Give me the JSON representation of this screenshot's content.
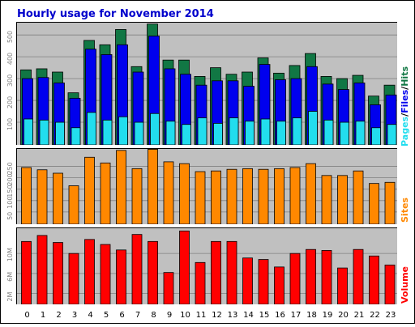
{
  "chart_data": [
    {
      "type": "bar",
      "title": "Hourly usage for November 2014",
      "categories": [
        "0",
        "1",
        "2",
        "3",
        "4",
        "5",
        "6",
        "7",
        "8",
        "9",
        "10",
        "11",
        "12",
        "13",
        "14",
        "15",
        "16",
        "17",
        "18",
        "19",
        "20",
        "21",
        "22",
        "23"
      ],
      "ylabel_parts": [
        "Pages",
        "/",
        "Files",
        "/",
        "Hits"
      ],
      "ylim": [
        0,
        560
      ],
      "yticks": [
        "100",
        "200",
        "300",
        "400",
        "500"
      ],
      "series": [
        {
          "name": "Hits",
          "color": "#117744",
          "values": [
            340,
            345,
            330,
            235,
            475,
            455,
            525,
            355,
            550,
            385,
            385,
            310,
            350,
            320,
            330,
            395,
            325,
            360,
            415,
            310,
            300,
            315,
            220,
            270
          ]
        },
        {
          "name": "Files",
          "color": "#0000ee",
          "values": [
            300,
            305,
            280,
            210,
            435,
            410,
            455,
            330,
            495,
            345,
            320,
            270,
            290,
            290,
            265,
            365,
            295,
            300,
            355,
            275,
            250,
            280,
            180,
            225
          ]
        },
        {
          "name": "Pages",
          "color": "#22ddee",
          "values": [
            115,
            110,
            100,
            75,
            145,
            110,
            125,
            100,
            140,
            105,
            90,
            120,
            95,
            120,
            105,
            115,
            105,
            120,
            150,
            110,
            100,
            105,
            75,
            90
          ]
        }
      ],
      "grid": true
    },
    {
      "type": "bar",
      "categories": [
        "0",
        "1",
        "2",
        "3",
        "4",
        "5",
        "6",
        "7",
        "8",
        "9",
        "10",
        "11",
        "12",
        "13",
        "14",
        "15",
        "16",
        "17",
        "18",
        "19",
        "20",
        "21",
        "22",
        "23"
      ],
      "ylabel": "Sites",
      "ylim": [
        0,
        330
      ],
      "yticks": [
        "50",
        "100",
        "150",
        "200",
        "250"
      ],
      "series": [
        {
          "name": "Sites",
          "color": "#ff8800",
          "values": [
            245,
            235,
            220,
            165,
            290,
            265,
            320,
            240,
            325,
            270,
            262,
            227,
            230,
            237,
            240,
            237,
            240,
            245,
            262,
            210,
            210,
            230,
            175,
            180
          ]
        }
      ],
      "grid": true
    },
    {
      "type": "bar",
      "categories": [
        "0",
        "1",
        "2",
        "3",
        "4",
        "5",
        "6",
        "7",
        "8",
        "9",
        "10",
        "11",
        "12",
        "13",
        "14",
        "15",
        "16",
        "17",
        "18",
        "19",
        "20",
        "21",
        "22",
        "23"
      ],
      "ylabel": "Volume",
      "ylim": [
        0,
        15.2
      ],
      "yticks": [
        "2M",
        "6M",
        "10M"
      ],
      "series": [
        {
          "name": "Volume",
          "color": "#ff0000",
          "values": [
            12.4,
            13.6,
            12.2,
            10.0,
            12.8,
            11.8,
            10.7,
            13.8,
            12.4,
            6.2,
            14.5,
            8.2,
            12.4,
            12.4,
            9.1,
            8.8,
            7.3,
            10.0,
            10.8,
            10.6,
            7.1,
            10.8,
            9.5,
            7.7
          ]
        }
      ],
      "grid": true
    }
  ]
}
